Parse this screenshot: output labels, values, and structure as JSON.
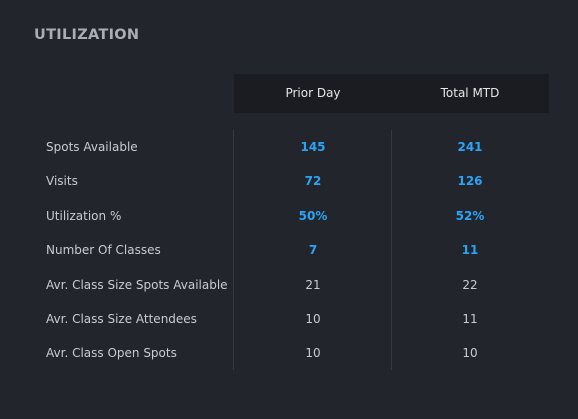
{
  "header": {
    "title": "UTILIZATION"
  },
  "table": {
    "columns": [
      "Prior Day",
      "Total MTD"
    ],
    "rows": [
      {
        "label": "Spots Available",
        "cells": [
          "145",
          "241"
        ]
      },
      {
        "label": "Visits",
        "cells": [
          "72",
          "126"
        ]
      },
      {
        "label": "Utilization %",
        "cells": [
          "50%",
          "52%"
        ]
      },
      {
        "label": "Number Of Classes",
        "cells": [
          "7",
          "11"
        ]
      },
      {
        "label": "Avr. Class Size Spots Available",
        "cells": [
          "21",
          "22"
        ]
      },
      {
        "label": "Avr. Class Size Attendees",
        "cells": [
          "10",
          "11"
        ]
      },
      {
        "label": "Avr. Class Open Spots",
        "cells": [
          "10",
          "10"
        ]
      }
    ]
  }
}
